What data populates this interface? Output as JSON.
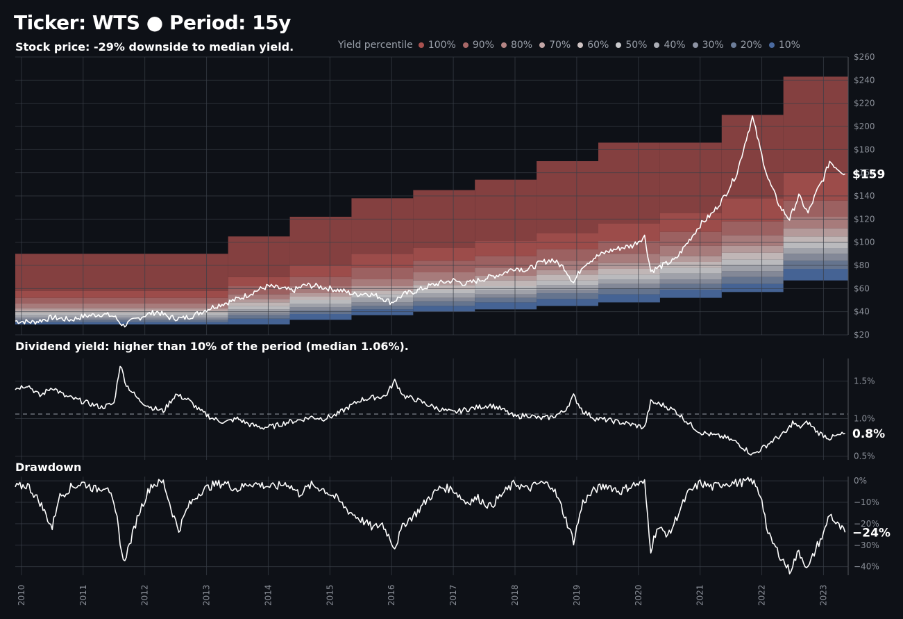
{
  "header": {
    "title": "Ticker: WTS  ●  Period: 15y",
    "subtitle": "Stock price: -29% downside to median yield."
  },
  "legend": {
    "title": "Yield percentile",
    "items": [
      {
        "label": "100%",
        "color": "#a8514f"
      },
      {
        "label": "90%",
        "color": "#a86868"
      },
      {
        "label": "80%",
        "color": "#b48484"
      },
      {
        "label": "70%",
        "color": "#c2a6a6"
      },
      {
        "label": "60%",
        "color": "#cfc4c4"
      },
      {
        "label": "50%",
        "color": "#c9c9cc"
      },
      {
        "label": "40%",
        "color": "#abaeb6"
      },
      {
        "label": "30%",
        "color": "#8d93a3"
      },
      {
        "label": "20%",
        "color": "#6c7d99"
      },
      {
        "label": "10%",
        "color": "#4a6aa0"
      }
    ]
  },
  "panels": {
    "yield_title": "Dividend yield: higher than 10% of the period (median 1.06%).",
    "drawdown_title": "Drawdown"
  },
  "chart_data": [
    {
      "type": "area",
      "name": "price",
      "x_ticks": [
        "2010",
        "2011",
        "2012",
        "2013",
        "2014",
        "2015",
        "2016",
        "2017",
        "2018",
        "2019",
        "2020",
        "2021",
        "2022",
        "2023"
      ],
      "y_ticks": [
        "$20",
        "$40",
        "$60",
        "$80",
        "$100",
        "$120",
        "$140",
        "$160",
        "$180",
        "$200",
        "$220",
        "$240",
        "$260"
      ],
      "ylim": [
        20,
        260
      ],
      "xlim": [
        2009.9,
        2023.4
      ],
      "last_label": "$159",
      "price_points": [
        [
          2009.9,
          32
        ],
        [
          2010.2,
          31
        ],
        [
          2010.5,
          35
        ],
        [
          2010.8,
          33
        ],
        [
          2011.0,
          36
        ],
        [
          2011.3,
          38
        ],
        [
          2011.5,
          36
        ],
        [
          2011.65,
          28
        ],
        [
          2011.8,
          32
        ],
        [
          2012.0,
          37
        ],
        [
          2012.2,
          40
        ],
        [
          2012.4,
          35
        ],
        [
          2012.6,
          34
        ],
        [
          2012.8,
          37
        ],
        [
          2013.0,
          42
        ],
        [
          2013.2,
          46
        ],
        [
          2013.4,
          49
        ],
        [
          2013.6,
          53
        ],
        [
          2013.8,
          58
        ],
        [
          2014.0,
          62
        ],
        [
          2014.2,
          60
        ],
        [
          2014.4,
          58
        ],
        [
          2014.6,
          63
        ],
        [
          2014.8,
          62
        ],
        [
          2015.0,
          60
        ],
        [
          2015.2,
          58
        ],
        [
          2015.4,
          55
        ],
        [
          2015.6,
          56
        ],
        [
          2015.8,
          53
        ],
        [
          2016.0,
          48
        ],
        [
          2016.2,
          55
        ],
        [
          2016.4,
          58
        ],
        [
          2016.6,
          62
        ],
        [
          2016.8,
          65
        ],
        [
          2017.0,
          67
        ],
        [
          2017.2,
          64
        ],
        [
          2017.4,
          67
        ],
        [
          2017.6,
          70
        ],
        [
          2017.8,
          73
        ],
        [
          2018.0,
          78
        ],
        [
          2018.2,
          76
        ],
        [
          2018.4,
          82
        ],
        [
          2018.6,
          85
        ],
        [
          2018.8,
          78
        ],
        [
          2018.95,
          65
        ],
        [
          2019.1,
          80
        ],
        [
          2019.3,
          87
        ],
        [
          2019.5,
          92
        ],
        [
          2019.7,
          95
        ],
        [
          2019.9,
          97
        ],
        [
          2020.1,
          105
        ],
        [
          2020.2,
          75
        ],
        [
          2020.4,
          80
        ],
        [
          2020.6,
          85
        ],
        [
          2020.8,
          100
        ],
        [
          2021.0,
          115
        ],
        [
          2021.2,
          125
        ],
        [
          2021.4,
          140
        ],
        [
          2021.6,
          160
        ],
        [
          2021.75,
          190
        ],
        [
          2021.85,
          208
        ],
        [
          2022.0,
          175
        ],
        [
          2022.1,
          155
        ],
        [
          2022.3,
          130
        ],
        [
          2022.45,
          120
        ],
        [
          2022.6,
          140
        ],
        [
          2022.75,
          125
        ],
        [
          2022.9,
          145
        ],
        [
          2023.0,
          155
        ],
        [
          2023.1,
          170
        ],
        [
          2023.2,
          165
        ],
        [
          2023.35,
          159
        ]
      ],
      "percentile_bands": [
        {
          "start": 2009.9,
          "end": 2013.35,
          "bounds": [
            29,
            31,
            33,
            35,
            37,
            39,
            41,
            43,
            47,
            52,
            58,
            90
          ]
        },
        {
          "start": 2013.35,
          "end": 2014.35,
          "bounds": [
            29,
            34,
            37,
            39,
            42,
            45,
            48,
            51,
            55,
            62,
            70,
            105
          ]
        },
        {
          "start": 2014.35,
          "end": 2015.35,
          "bounds": [
            33,
            38,
            41,
            44,
            47,
            50,
            53,
            56,
            62,
            70,
            80,
            122
          ]
        },
        {
          "start": 2015.35,
          "end": 2016.35,
          "bounds": [
            37,
            42,
            45,
            48,
            52,
            55,
            58,
            62,
            68,
            78,
            90,
            138
          ]
        },
        {
          "start": 2016.35,
          "end": 2017.35,
          "bounds": [
            40,
            45,
            49,
            52,
            56,
            59,
            63,
            67,
            74,
            84,
            95,
            145
          ]
        },
        {
          "start": 2017.35,
          "end": 2018.35,
          "bounds": [
            42,
            48,
            52,
            55,
            59,
            62,
            67,
            71,
            78,
            88,
            101,
            154
          ]
        },
        {
          "start": 2018.35,
          "end": 2019.35,
          "bounds": [
            45,
            51,
            56,
            59,
            63,
            67,
            72,
            76,
            84,
            94,
            108,
            170
          ]
        },
        {
          "start": 2019.35,
          "end": 2020.35,
          "bounds": [
            48,
            55,
            60,
            64,
            68,
            72,
            77,
            82,
            90,
            101,
            116,
            186
          ]
        },
        {
          "start": 2020.35,
          "end": 2021.35,
          "bounds": [
            52,
            59,
            64,
            68,
            73,
            78,
            83,
            88,
            97,
            109,
            125,
            186
          ]
        },
        {
          "start": 2021.35,
          "end": 2022.35,
          "bounds": [
            57,
            64,
            70,
            75,
            80,
            85,
            91,
            97,
            106,
            118,
            138,
            210
          ]
        },
        {
          "start": 2022.35,
          "end": 2023.4,
          "bounds": [
            67,
            77,
            84,
            90,
            95,
            100,
            105,
            112,
            122,
            136,
            160,
            243
          ]
        }
      ]
    },
    {
      "type": "line",
      "name": "dividend_yield",
      "y_ticks": [
        "0.5%",
        "1.0%",
        "1.5%"
      ],
      "ylim": [
        0.45,
        1.8
      ],
      "median": 1.06,
      "last_label": "0.8%",
      "points": [
        [
          2009.9,
          1.4
        ],
        [
          2010.1,
          1.45
        ],
        [
          2010.3,
          1.3
        ],
        [
          2010.5,
          1.42
        ],
        [
          2010.7,
          1.3
        ],
        [
          2010.9,
          1.25
        ],
        [
          2011.1,
          1.2
        ],
        [
          2011.3,
          1.15
        ],
        [
          2011.5,
          1.2
        ],
        [
          2011.6,
          1.72
        ],
        [
          2011.7,
          1.45
        ],
        [
          2011.9,
          1.25
        ],
        [
          2012.1,
          1.15
        ],
        [
          2012.3,
          1.1
        ],
        [
          2012.5,
          1.32
        ],
        [
          2012.7,
          1.25
        ],
        [
          2012.9,
          1.1
        ],
        [
          2013.1,
          1.0
        ],
        [
          2013.3,
          0.95
        ],
        [
          2013.5,
          1.0
        ],
        [
          2013.7,
          0.92
        ],
        [
          2013.9,
          0.88
        ],
        [
          2014.1,
          0.9
        ],
        [
          2014.3,
          0.95
        ],
        [
          2014.5,
          0.98
        ],
        [
          2014.7,
          1.02
        ],
        [
          2014.9,
          1.0
        ],
        [
          2015.1,
          1.05
        ],
        [
          2015.3,
          1.15
        ],
        [
          2015.5,
          1.25
        ],
        [
          2015.7,
          1.28
        ],
        [
          2015.9,
          1.3
        ],
        [
          2016.05,
          1.5
        ],
        [
          2016.2,
          1.3
        ],
        [
          2016.4,
          1.25
        ],
        [
          2016.6,
          1.18
        ],
        [
          2016.8,
          1.12
        ],
        [
          2017.0,
          1.08
        ],
        [
          2017.2,
          1.12
        ],
        [
          2017.4,
          1.15
        ],
        [
          2017.6,
          1.18
        ],
        [
          2017.8,
          1.12
        ],
        [
          2018.0,
          1.02
        ],
        [
          2018.2,
          1.05
        ],
        [
          2018.4,
          1.0
        ],
        [
          2018.6,
          1.02
        ],
        [
          2018.8,
          1.1
        ],
        [
          2018.95,
          1.3
        ],
        [
          2019.1,
          1.1
        ],
        [
          2019.3,
          1.0
        ],
        [
          2019.5,
          0.98
        ],
        [
          2019.7,
          0.95
        ],
        [
          2019.9,
          0.92
        ],
        [
          2020.1,
          0.88
        ],
        [
          2020.2,
          1.22
        ],
        [
          2020.4,
          1.18
        ],
        [
          2020.6,
          1.1
        ],
        [
          2020.8,
          0.95
        ],
        [
          2021.0,
          0.82
        ],
        [
          2021.2,
          0.78
        ],
        [
          2021.4,
          0.75
        ],
        [
          2021.6,
          0.68
        ],
        [
          2021.85,
          0.52
        ],
        [
          2022.0,
          0.6
        ],
        [
          2022.2,
          0.72
        ],
        [
          2022.4,
          0.82
        ],
        [
          2022.5,
          0.95
        ],
        [
          2022.6,
          0.88
        ],
        [
          2022.75,
          0.95
        ],
        [
          2022.9,
          0.82
        ],
        [
          2023.1,
          0.74
        ],
        [
          2023.35,
          0.8
        ]
      ]
    },
    {
      "type": "line",
      "name": "drawdown",
      "y_ticks": [
        "0%",
        "-10%",
        "-20%",
        "-30%",
        "-40%"
      ],
      "ylim": [
        -44,
        2
      ],
      "last_label": "-24%",
      "points": [
        [
          2009.9,
          -3
        ],
        [
          2010.1,
          -2
        ],
        [
          2010.3,
          -10
        ],
        [
          2010.5,
          -22
        ],
        [
          2010.6,
          -8
        ],
        [
          2010.8,
          -3
        ],
        [
          2011.0,
          -1
        ],
        [
          2011.2,
          -4
        ],
        [
          2011.4,
          -2
        ],
        [
          2011.55,
          -18
        ],
        [
          2011.65,
          -38
        ],
        [
          2011.75,
          -30
        ],
        [
          2011.9,
          -15
        ],
        [
          2012.1,
          -2
        ],
        [
          2012.3,
          -0.5
        ],
        [
          2012.45,
          -15
        ],
        [
          2012.55,
          -23
        ],
        [
          2012.7,
          -12
        ],
        [
          2012.9,
          -5
        ],
        [
          2013.1,
          -2
        ],
        [
          2013.3,
          -1
        ],
        [
          2013.5,
          -4
        ],
        [
          2013.7,
          -1
        ],
        [
          2013.9,
          -2
        ],
        [
          2014.1,
          -3
        ],
        [
          2014.3,
          -1
        ],
        [
          2014.5,
          -6
        ],
        [
          2014.7,
          -2
        ],
        [
          2014.9,
          -4
        ],
        [
          2015.1,
          -8
        ],
        [
          2015.3,
          -14
        ],
        [
          2015.5,
          -18
        ],
        [
          2015.7,
          -22
        ],
        [
          2015.85,
          -20
        ],
        [
          2016.05,
          -31
        ],
        [
          2016.2,
          -20
        ],
        [
          2016.4,
          -15
        ],
        [
          2016.6,
          -8
        ],
        [
          2016.8,
          -3
        ],
        [
          2017.0,
          -4
        ],
        [
          2017.2,
          -10
        ],
        [
          2017.4,
          -8
        ],
        [
          2017.6,
          -12
        ],
        [
          2017.8,
          -6
        ],
        [
          2018.0,
          -1
        ],
        [
          2018.2,
          -4
        ],
        [
          2018.4,
          -1
        ],
        [
          2018.6,
          -2
        ],
        [
          2018.75,
          -12
        ],
        [
          2018.95,
          -28
        ],
        [
          2019.1,
          -10
        ],
        [
          2019.3,
          -4
        ],
        [
          2019.5,
          -2
        ],
        [
          2019.7,
          -5
        ],
        [
          2019.9,
          -2
        ],
        [
          2020.1,
          -1
        ],
        [
          2020.2,
          -32
        ],
        [
          2020.3,
          -22
        ],
        [
          2020.5,
          -25
        ],
        [
          2020.65,
          -15
        ],
        [
          2020.8,
          -6
        ],
        [
          2021.0,
          -1
        ],
        [
          2021.2,
          -3
        ],
        [
          2021.4,
          -1
        ],
        [
          2021.6,
          -1
        ],
        [
          2021.85,
          0
        ],
        [
          2022.0,
          -8
        ],
        [
          2022.1,
          -25
        ],
        [
          2022.3,
          -35
        ],
        [
          2022.45,
          -42
        ],
        [
          2022.6,
          -33
        ],
        [
          2022.75,
          -41
        ],
        [
          2022.9,
          -30
        ],
        [
          2023.0,
          -25
        ],
        [
          2023.1,
          -15
        ],
        [
          2023.2,
          -20
        ],
        [
          2023.35,
          -24
        ]
      ]
    }
  ]
}
